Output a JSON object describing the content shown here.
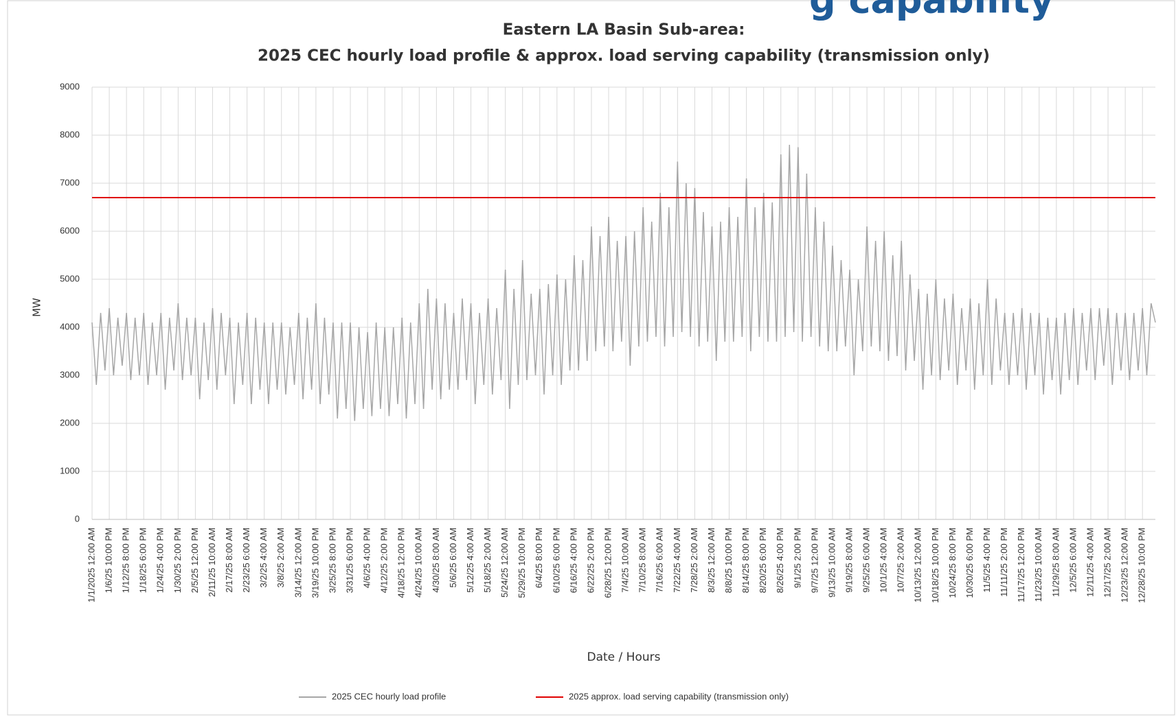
{
  "slide_title_fragment": "g capability",
  "chart_data": {
    "type": "line",
    "title": "Eastern LA Basin Sub-area:",
    "subtitle": "2025 CEC hourly load profile & approx. load serving capability (transmission only)",
    "y_label": "MW",
    "x_label": "Date / Hours",
    "ylim": [
      0,
      9000
    ],
    "yticks": [
      0,
      1000,
      2000,
      3000,
      4000,
      5000,
      6000,
      7000,
      8000,
      9000
    ],
    "grid": true,
    "categories": [
      "1/1/2025 12:00 AM",
      null,
      null,
      null,
      "1/6/25 10:00 PM",
      null,
      null,
      null,
      "1/12/25 8:00 PM",
      null,
      null,
      null,
      "1/18/25 6:00 PM",
      null,
      null,
      null,
      "1/24/25 4:00 PM",
      null,
      null,
      null,
      "1/30/25 2:00 PM",
      null,
      null,
      null,
      "2/5/25 12:00 PM",
      null,
      null,
      null,
      "2/11/25 10:00 AM",
      null,
      null,
      null,
      "2/17/25 8:00 AM",
      null,
      null,
      null,
      "2/23/25 6:00 AM",
      null,
      null,
      null,
      "3/2/25 4:00 AM",
      null,
      null,
      null,
      "3/8/25 2:00 AM",
      null,
      null,
      null,
      "3/14/25 12:00 AM",
      null,
      null,
      null,
      "3/19/25 10:00 PM",
      null,
      null,
      null,
      "3/25/25 8:00 PM",
      null,
      null,
      null,
      "3/31/25 6:00 PM",
      null,
      null,
      null,
      "4/6/25 4:00 PM",
      null,
      null,
      null,
      "4/12/25 2:00 PM",
      null,
      null,
      null,
      "4/18/25 12:00 PM",
      null,
      null,
      null,
      "4/24/25 10:00 AM",
      null,
      null,
      null,
      "4/30/25 8:00 AM",
      null,
      null,
      null,
      "5/6/25 6:00 AM",
      null,
      null,
      null,
      "5/12/25 4:00 AM",
      null,
      null,
      null,
      "5/18/25 2:00 AM",
      null,
      null,
      null,
      "5/24/25 12:00 AM",
      null,
      null,
      null,
      "5/29/25 10:00 PM",
      null,
      null,
      null,
      "6/4/25 8:00 PM",
      null,
      null,
      null,
      "6/10/25 6:00 PM",
      null,
      null,
      null,
      "6/16/25 4:00 PM",
      null,
      null,
      null,
      "6/22/25 2:00 PM",
      null,
      null,
      null,
      "6/28/25 12:00 PM",
      null,
      null,
      null,
      "7/4/25 10:00 AM",
      null,
      null,
      null,
      "7/10/25 8:00 AM",
      null,
      null,
      null,
      "7/16/25 6:00 AM",
      null,
      null,
      null,
      "7/22/25 4:00 AM",
      null,
      null,
      null,
      "7/28/25 2:00 AM",
      null,
      null,
      null,
      "8/3/25 12:00 AM",
      null,
      null,
      null,
      "8/8/25 10:00 PM",
      null,
      null,
      null,
      "8/14/25 8:00 PM",
      null,
      null,
      null,
      "8/20/25 6:00 PM",
      null,
      null,
      null,
      "8/26/25 4:00 PM",
      null,
      null,
      null,
      "9/1/25 2:00 PM",
      null,
      null,
      null,
      "9/7/25 12:00 PM",
      null,
      null,
      null,
      "9/13/25 10:00 AM",
      null,
      null,
      null,
      "9/19/25 8:00 AM",
      null,
      null,
      null,
      "9/25/25 6:00 AM",
      null,
      null,
      null,
      "10/1/25 4:00 AM",
      null,
      null,
      null,
      "10/7/25 2:00 AM",
      null,
      null,
      null,
      "10/13/25 12:00 AM",
      null,
      null,
      null,
      "10/18/25 10:00 PM",
      null,
      null,
      null,
      "10/24/25 8:00 PM",
      null,
      null,
      null,
      "10/30/25 6:00 PM",
      null,
      null,
      null,
      "11/5/25 4:00 PM",
      null,
      null,
      null,
      "11/11/25 2:00 PM",
      null,
      null,
      null,
      "11/17/25 12:00 PM",
      null,
      null,
      null,
      "11/23/25 10:00 AM",
      null,
      null,
      null,
      "11/29/25 8:00 AM",
      null,
      null,
      null,
      "12/5/25 6:00 AM",
      null,
      null,
      null,
      "12/11/25 4:00 AM",
      null,
      null,
      null,
      "12/17/25 2:00 AM",
      null,
      null,
      null,
      "12/23/25 12:00 AM",
      null,
      null,
      null,
      "12/28/25 10:00 PM",
      null,
      null,
      null
    ],
    "series": [
      {
        "name": "2025 CEC hourly load profile",
        "color": "#a6a6a6",
        "values": [
          4100,
          2800,
          4300,
          3100,
          4400,
          3000,
          4200,
          3200,
          4300,
          2900,
          4200,
          3000,
          4300,
          2800,
          4100,
          3000,
          4300,
          2700,
          4200,
          3100,
          4500,
          2900,
          4200,
          3000,
          4200,
          2500,
          4100,
          2900,
          4400,
          2700,
          4300,
          3000,
          4200,
          2400,
          4100,
          2800,
          4300,
          2400,
          4200,
          2700,
          4100,
          2400,
          4100,
          2700,
          4100,
          2600,
          4000,
          2800,
          4300,
          2500,
          4200,
          2700,
          4500,
          2400,
          4200,
          2600,
          4100,
          2100,
          4100,
          2300,
          4100,
          2050,
          4000,
          2300,
          3900,
          2150,
          4100,
          2300,
          4000,
          2150,
          4000,
          2400,
          4200,
          2100,
          4100,
          2400,
          4500,
          2300,
          4800,
          2700,
          4600,
          2500,
          4500,
          2700,
          4300,
          2700,
          4600,
          2900,
          4500,
          2400,
          4300,
          2800,
          4600,
          2600,
          4400,
          2900,
          5200,
          2300,
          4800,
          2800,
          5400,
          2900,
          4700,
          3000,
          4800,
          2600,
          4900,
          3000,
          5100,
          2800,
          5000,
          3100,
          5500,
          3100,
          5400,
          3300,
          6100,
          3500,
          5900,
          3600,
          6300,
          3500,
          5800,
          3700,
          5900,
          3200,
          6000,
          3600,
          6500,
          3700,
          6200,
          3800,
          6800,
          3600,
          6500,
          3800,
          7450,
          3900,
          7000,
          3800,
          6900,
          3600,
          6400,
          3700,
          6100,
          3300,
          6200,
          3700,
          6500,
          3700,
          6300,
          3800,
          7100,
          3500,
          6500,
          3800,
          6800,
          3700,
          6600,
          3700,
          7600,
          3800,
          7800,
          3900,
          7750,
          3700,
          7200,
          3800,
          6500,
          3600,
          6200,
          3500,
          5700,
          3500,
          5400,
          3600,
          5200,
          3000,
          5000,
          3500,
          6100,
          3600,
          5800,
          3500,
          6000,
          3300,
          5500,
          3400,
          5800,
          3100,
          5100,
          3300,
          4800,
          2700,
          4700,
          3000,
          5000,
          2900,
          4600,
          3100,
          4700,
          2800,
          4400,
          3100,
          4600,
          2700,
          4500,
          3000,
          5000,
          2800,
          4600,
          3100,
          4300,
          2800,
          4300,
          3000,
          4400,
          2700,
          4300,
          3000,
          4300,
          2600,
          4200,
          2900,
          4200,
          2600,
          4300,
          2900,
          4400,
          2800,
          4300,
          3100,
          4400,
          2900,
          4400,
          3200,
          4400,
          2800,
          4300,
          3100,
          4300,
          2900,
          4300,
          3100,
          4400,
          3000,
          4500,
          4100
        ]
      }
    ],
    "reference_line": {
      "name": "2025 approx. load serving  capability (transmission only)",
      "color": "#e00000",
      "value": 6700
    }
  }
}
